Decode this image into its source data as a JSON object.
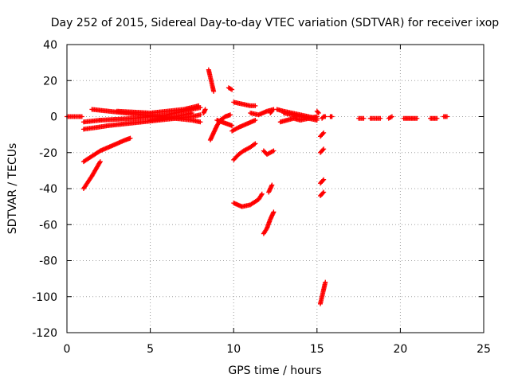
{
  "chart_data": {
    "type": "scatter",
    "title": "Day 252 of 2015, Sidereal Day-to-day VTEC variation (SDTVAR) for receiver ixop",
    "xlabel": "GPS time / hours",
    "ylabel": "SDTVAR / TECUs",
    "xlim": [
      0,
      25
    ],
    "ylim": [
      -120,
      40
    ],
    "xticks": [
      0,
      5,
      10,
      15,
      20,
      25
    ],
    "yticks": [
      -120,
      -100,
      -80,
      -60,
      -40,
      -20,
      0,
      20,
      40
    ],
    "grid": true,
    "marker": "+",
    "color": "#ff0000",
    "segments": [
      {
        "x": [
          0.0,
          0.9
        ],
        "y": [
          0,
          0
        ]
      },
      {
        "x": [
          1.0,
          1.5,
          2.0
        ],
        "y": [
          -40,
          -33,
          -25
        ]
      },
      {
        "x": [
          1.0,
          1.5,
          2.0,
          2.5,
          3.0,
          3.5,
          3.8
        ],
        "y": [
          -25,
          -22,
          -19,
          -17,
          -15,
          -13,
          -12
        ]
      },
      {
        "x": [
          1.0,
          1.8,
          2.5,
          3.5,
          4.5,
          5.5,
          6.5,
          7.5,
          8.0
        ],
        "y": [
          -7,
          -6,
          -5,
          -4,
          -3,
          -2,
          -1,
          0,
          1
        ]
      },
      {
        "x": [
          1.0,
          1.5,
          2.0
        ],
        "y": [
          -3,
          -2.5,
          -2
        ]
      },
      {
        "x": [
          1.5,
          2.5,
          3.5,
          4.5,
          5.5,
          6.5,
          7.5,
          8.0
        ],
        "y": [
          4,
          3,
          2,
          1,
          0,
          -1,
          -2,
          -3
        ]
      },
      {
        "x": [
          2.0,
          3.0,
          4.0,
          5.0,
          6.0,
          7.0,
          8.0
        ],
        "y": [
          -2,
          -1.5,
          -1,
          0,
          1,
          3,
          5
        ]
      },
      {
        "x": [
          3.0,
          4.0,
          5.0,
          6.0,
          7.0,
          7.9
        ],
        "y": [
          3,
          2.5,
          2,
          3,
          4,
          6
        ]
      },
      {
        "x": [
          5.0,
          5.8,
          6.5,
          7.0,
          7.5
        ],
        "y": [
          -2,
          -1,
          0,
          1,
          2
        ]
      },
      {
        "x": [
          8.2,
          8.3
        ],
        "y": [
          2,
          4
        ]
      },
      {
        "x": [
          8.5,
          8.6,
          8.7,
          8.8
        ],
        "y": [
          26,
          22,
          18,
          14
        ]
      },
      {
        "x": [
          8.6,
          8.8,
          9.0,
          9.2,
          9.5,
          9.8
        ],
        "y": [
          -13,
          -9,
          -5,
          -2,
          0,
          1
        ]
      },
      {
        "x": [
          9.0,
          9.3,
          9.6,
          9.9
        ],
        "y": [
          -2,
          -3,
          -4,
          -5
        ]
      },
      {
        "x": [
          9.7,
          9.9
        ],
        "y": [
          16,
          15
        ]
      },
      {
        "x": [
          10.0,
          10.5,
          11.0,
          11.3
        ],
        "y": [
          8,
          7,
          6,
          6
        ]
      },
      {
        "x": [
          9.9,
          10.3,
          10.8,
          11.3
        ],
        "y": [
          -8,
          -6,
          -4,
          -2
        ]
      },
      {
        "x": [
          10.0,
          10.3,
          10.6,
          11.0,
          11.3
        ],
        "y": [
          -24,
          -21,
          -19,
          -17,
          -15
        ]
      },
      {
        "x": [
          10.0,
          10.5,
          11.0,
          11.5,
          11.7
        ],
        "y": [
          -48,
          -50,
          -49,
          -46,
          -43
        ]
      },
      {
        "x": [
          11.0,
          11.5,
          12.0,
          12.4
        ],
        "y": [
          2,
          1,
          3,
          4
        ]
      },
      {
        "x": [
          11.8,
          12.0,
          12.2,
          12.4
        ],
        "y": [
          -19,
          -21,
          -20,
          -19
        ]
      },
      {
        "x": [
          11.8,
          12.0,
          12.2,
          12.4
        ],
        "y": [
          -65,
          -62,
          -57,
          -53
        ]
      },
      {
        "x": [
          12.1,
          12.3
        ],
        "y": [
          -42,
          -38
        ]
      },
      {
        "x": [
          12.2,
          12.3
        ],
        "y": [
          2,
          3
        ]
      },
      {
        "x": [
          12.6,
          13.0,
          13.5,
          14.0,
          14.5,
          15.0
        ],
        "y": [
          4,
          3,
          2,
          1,
          0,
          -1
        ]
      },
      {
        "x": [
          12.8,
          13.2,
          13.6,
          14.0,
          14.5,
          15.0
        ],
        "y": [
          -3,
          -2,
          -1,
          -2,
          -1,
          0
        ]
      },
      {
        "x": [
          13.0,
          13.5,
          14.0,
          14.5,
          15.0
        ],
        "y": [
          2,
          1,
          0,
          -1,
          -2
        ]
      },
      {
        "x": [
          15.0,
          15.1
        ],
        "y": [
          3,
          2
        ]
      },
      {
        "x": [
          15.2,
          15.3,
          15.4,
          15.5
        ],
        "y": [
          -104,
          -100,
          -96,
          -92
        ]
      },
      {
        "x": [
          15.2,
          15.3,
          15.4
        ],
        "y": [
          -44,
          -43,
          -42
        ]
      },
      {
        "x": [
          15.2,
          15.3,
          15.4
        ],
        "y": [
          -37,
          -36,
          -35
        ]
      },
      {
        "x": [
          15.2,
          15.3,
          15.4
        ],
        "y": [
          -20,
          -19,
          -18
        ]
      },
      {
        "x": [
          15.2,
          15.3,
          15.4
        ],
        "y": [
          -11,
          -10,
          -9
        ]
      },
      {
        "x": [
          15.3,
          15.4,
          15.5
        ],
        "y": [
          -1,
          0,
          0
        ]
      },
      {
        "x": [
          15.8,
          15.9
        ],
        "y": [
          0,
          0
        ]
      },
      {
        "x": [
          17.5,
          17.8
        ],
        "y": [
          -1,
          -1
        ]
      },
      {
        "x": [
          18.2,
          18.5,
          18.8
        ],
        "y": [
          -1,
          -1,
          -1
        ]
      },
      {
        "x": [
          19.3,
          19.5
        ],
        "y": [
          -1,
          0
        ]
      },
      {
        "x": [
          20.2,
          20.6,
          21.0
        ],
        "y": [
          -1,
          -1,
          -1
        ]
      },
      {
        "x": [
          21.8,
          22.2
        ],
        "y": [
          -1,
          -1
        ]
      },
      {
        "x": [
          22.6,
          22.8
        ],
        "y": [
          0,
          0
        ]
      }
    ]
  }
}
